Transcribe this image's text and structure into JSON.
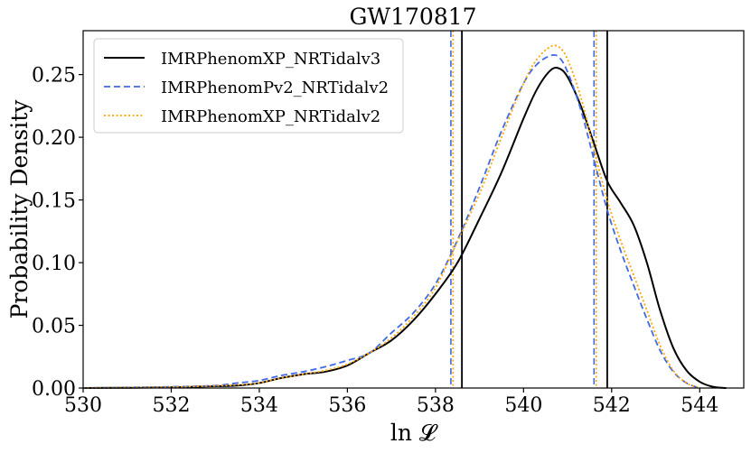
{
  "chart_data": {
    "type": "line",
    "title": "GW170817",
    "xlabel": "ln 𝓛",
    "ylabel": "Probability Density",
    "xlim": [
      530,
      545
    ],
    "ylim": [
      0,
      0.285
    ],
    "xticks": [
      530,
      532,
      534,
      536,
      538,
      540,
      542,
      544
    ],
    "yticks": [
      0.0,
      0.05,
      0.1,
      0.15,
      0.2,
      0.25
    ],
    "xtick_labels": [
      "530",
      "532",
      "534",
      "536",
      "538",
      "540",
      "542",
      "544"
    ],
    "ytick_labels": [
      "0.00",
      "0.05",
      "0.10",
      "0.15",
      "0.20",
      "0.25"
    ],
    "grid": false,
    "legend_position": "top-left",
    "series": [
      {
        "name": "IMRPhenomXP_NRTidalv3",
        "color": "#000000",
        "style": "solid",
        "vlines": [
          538.6,
          541.9
        ],
        "x": [
          530,
          532,
          533,
          533.5,
          534,
          534.5,
          535,
          535.5,
          536,
          536.5,
          537,
          537.5,
          538,
          538.5,
          539,
          539.5,
          540,
          540.3,
          540.6,
          540.8,
          541,
          541.3,
          541.6,
          541.9,
          542.2,
          542.5,
          542.8,
          543.1,
          543.4,
          543.7,
          544,
          544.3,
          544.6
        ],
        "y": [
          0,
          0.0005,
          0.0015,
          0.002,
          0.004,
          0.008,
          0.011,
          0.013,
          0.018,
          0.028,
          0.038,
          0.054,
          0.075,
          0.1,
          0.135,
          0.172,
          0.215,
          0.238,
          0.253,
          0.255,
          0.248,
          0.225,
          0.195,
          0.165,
          0.148,
          0.13,
          0.1,
          0.062,
          0.032,
          0.014,
          0.005,
          0.001,
          0
        ]
      },
      {
        "name": "IMRPhenomPv2_NRTidalv2",
        "color": "#4169e1",
        "style": "dashed",
        "vlines": [
          538.35,
          541.6
        ],
        "x": [
          530,
          532,
          533,
          533.5,
          534,
          534.5,
          535,
          535.5,
          536,
          536.5,
          537,
          537.5,
          538,
          538.5,
          539,
          539.5,
          540,
          540.3,
          540.6,
          540.8,
          541,
          541.3,
          541.6,
          541.9,
          542.2,
          542.5,
          542.8,
          543.1,
          543.4,
          543.7,
          544
        ],
        "y": [
          0,
          0.001,
          0.002,
          0.004,
          0.006,
          0.01,
          0.013,
          0.017,
          0.022,
          0.028,
          0.044,
          0.06,
          0.083,
          0.118,
          0.16,
          0.205,
          0.243,
          0.258,
          0.265,
          0.264,
          0.252,
          0.222,
          0.182,
          0.142,
          0.11,
          0.082,
          0.055,
          0.03,
          0.013,
          0.004,
          0
        ]
      },
      {
        "name": "IMRPhenomXP_NRTidalv2",
        "color": "#ffa500",
        "style": "dotted",
        "vlines": [
          538.4,
          541.65
        ],
        "x": [
          530,
          532,
          533,
          533.5,
          534,
          534.5,
          535,
          535.5,
          536,
          536.5,
          537,
          537.5,
          538,
          538.5,
          539,
          539.5,
          540,
          540.3,
          540.6,
          540.8,
          541,
          541.3,
          541.6,
          541.9,
          542.2,
          542.5,
          542.8,
          543.1,
          543.4,
          543.7,
          544
        ],
        "y": [
          0,
          0.0008,
          0.0018,
          0.0025,
          0.004,
          0.008,
          0.011,
          0.014,
          0.019,
          0.028,
          0.04,
          0.057,
          0.08,
          0.117,
          0.155,
          0.2,
          0.243,
          0.262,
          0.272,
          0.272,
          0.262,
          0.232,
          0.19,
          0.15,
          0.118,
          0.09,
          0.062,
          0.034,
          0.014,
          0.004,
          0
        ]
      }
    ]
  }
}
